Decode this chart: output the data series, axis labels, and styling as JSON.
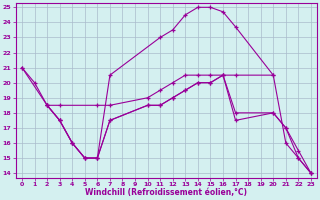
{
  "xlabel": "Windchill (Refroidissement éolien,°C)",
  "xlim_min": -0.5,
  "xlim_max": 23.5,
  "ylim_min": 13.7,
  "ylim_max": 25.3,
  "xticks": [
    0,
    1,
    2,
    3,
    4,
    5,
    6,
    7,
    8,
    9,
    10,
    11,
    12,
    13,
    14,
    15,
    16,
    17,
    18,
    19,
    20,
    21,
    22,
    23
  ],
  "yticks": [
    14,
    15,
    16,
    17,
    18,
    19,
    20,
    21,
    22,
    23,
    24,
    25
  ],
  "bg_color": "#d4f0f0",
  "line_color": "#990099",
  "grid_color": "#aabbcc",
  "line1_x": [
    0,
    2,
    3,
    6,
    7,
    10,
    11,
    12,
    13,
    14,
    15,
    16,
    17,
    20
  ],
  "line1_y": [
    21.0,
    18.5,
    18.5,
    18.5,
    18.5,
    19.0,
    19.5,
    20.0,
    20.5,
    20.5,
    20.5,
    20.5,
    20.5,
    20.5
  ],
  "line2_x": [
    0,
    1,
    2,
    3,
    4,
    5,
    6,
    7,
    11,
    12,
    13,
    14,
    15,
    16,
    17,
    20,
    21,
    22,
    23
  ],
  "line2_y": [
    21.0,
    20.0,
    18.5,
    17.5,
    16.0,
    15.0,
    15.0,
    20.5,
    23.0,
    23.5,
    24.5,
    25.0,
    25.0,
    24.7,
    23.7,
    20.5,
    16.0,
    15.0,
    14.0
  ],
  "line3_x": [
    2,
    3,
    4,
    5,
    6,
    7,
    10,
    11,
    12,
    13,
    14,
    15,
    16,
    17,
    20,
    21,
    22,
    23
  ],
  "line3_y": [
    18.5,
    17.5,
    16.0,
    15.0,
    15.0,
    17.5,
    18.5,
    18.5,
    19.0,
    19.5,
    20.0,
    20.0,
    20.5,
    18.0,
    18.0,
    17.0,
    15.0,
    14.0
  ],
  "line4_x": [
    2,
    3,
    4,
    5,
    6,
    7,
    10,
    11,
    12,
    13,
    14,
    15,
    16,
    17,
    20,
    21,
    22,
    23
  ],
  "line4_y": [
    18.5,
    17.5,
    16.0,
    15.0,
    15.0,
    17.5,
    18.5,
    18.5,
    19.0,
    19.5,
    20.0,
    20.0,
    20.5,
    17.5,
    18.0,
    17.0,
    15.5,
    14.0
  ]
}
